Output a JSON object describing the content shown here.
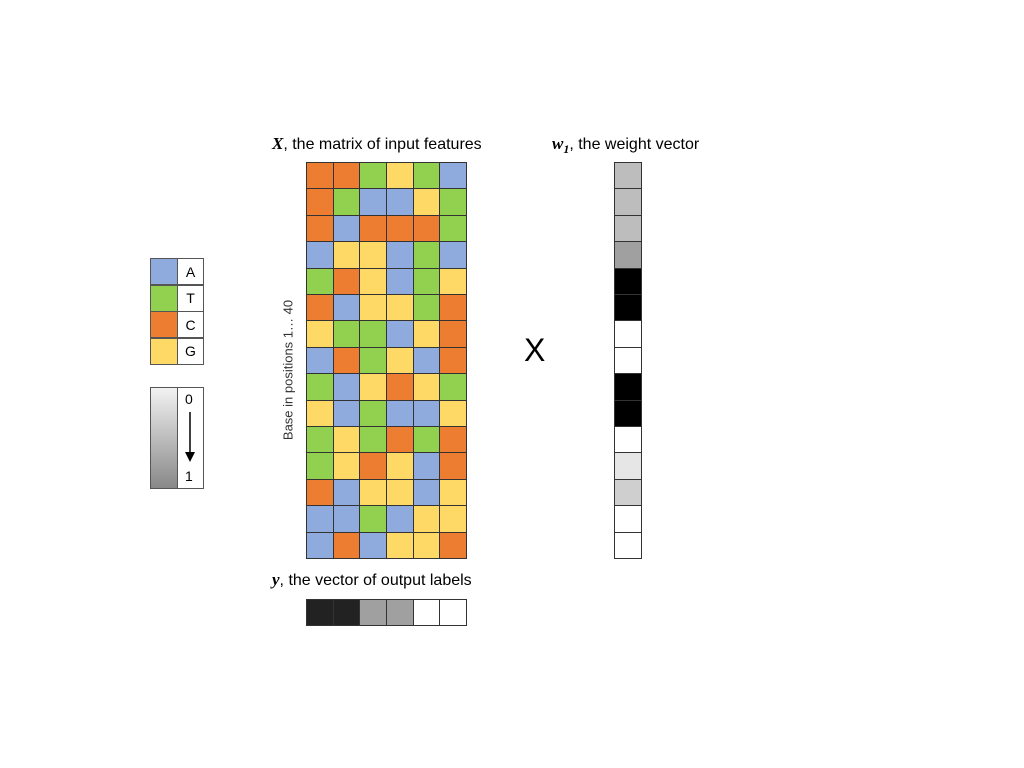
{
  "matrix": {
    "symbol": "X",
    "title": ", the matrix of input features",
    "axis_label": "Base in positions 1… 40",
    "rows": [
      [
        "C",
        "C",
        "T",
        "G",
        "T",
        "A"
      ],
      [
        "C",
        "T",
        "A",
        "A",
        "G",
        "T"
      ],
      [
        "C",
        "A",
        "C",
        "C",
        "C",
        "T"
      ],
      [
        "A",
        "G",
        "G",
        "A",
        "T",
        "A"
      ],
      [
        "T",
        "C",
        "G",
        "A",
        "T",
        "G"
      ],
      [
        "C",
        "A",
        "G",
        "G",
        "T",
        "C"
      ],
      [
        "G",
        "T",
        "T",
        "A",
        "G",
        "C"
      ],
      [
        "A",
        "C",
        "T",
        "G",
        "A",
        "C"
      ],
      [
        "T",
        "A",
        "G",
        "C",
        "G",
        "T"
      ],
      [
        "G",
        "A",
        "T",
        "A",
        "A",
        "G"
      ],
      [
        "T",
        "G",
        "T",
        "C",
        "T",
        "C"
      ],
      [
        "T",
        "G",
        "C",
        "G",
        "A",
        "C"
      ],
      [
        "C",
        "A",
        "G",
        "G",
        "A",
        "G"
      ],
      [
        "A",
        "A",
        "T",
        "A",
        "G",
        "G"
      ],
      [
        "A",
        "C",
        "A",
        "G",
        "G",
        "C"
      ]
    ]
  },
  "weights": {
    "symbol": "w",
    "subscript": "1",
    "title": ", the weight vector",
    "colors": [
      "#bdbdbd",
      "#bdbdbd",
      "#bdbdbd",
      "#a0a0a0",
      "#000000",
      "#000000",
      "#ffffff",
      "#ffffff",
      "#000000",
      "#000000",
      "#ffffff",
      "#e6e6e6",
      "#cfcfcf",
      "#ffffff",
      "#ffffff"
    ]
  },
  "labels": {
    "symbol": "y",
    "title": ", the vector of output labels",
    "colors": [
      "#222222",
      "#222222",
      "#a0a0a0",
      "#a0a0a0",
      "#ffffff",
      "#ffffff"
    ]
  },
  "operator": "X",
  "legend": {
    "bases": [
      {
        "label": "A",
        "color": "#8faadc"
      },
      {
        "label": "T",
        "color": "#92d050"
      },
      {
        "label": "C",
        "color": "#ed7d31"
      },
      {
        "label": "G",
        "color": "#ffd966"
      }
    ],
    "scale_start": "0",
    "scale_end": "1"
  }
}
